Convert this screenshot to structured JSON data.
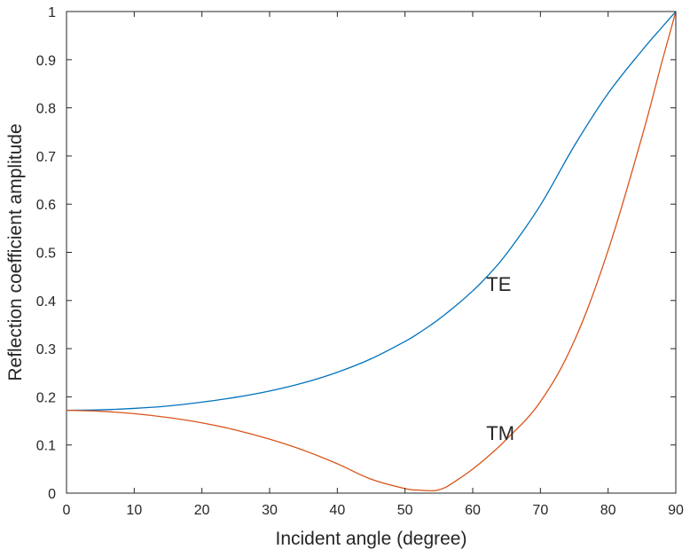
{
  "chart_data": {
    "type": "line",
    "title": "",
    "xlabel": "Incident angle (degree)",
    "ylabel": "Reflection coefficient amplitude",
    "xlim": [
      0,
      90
    ],
    "ylim": [
      0,
      1
    ],
    "x_ticks": [
      0,
      10,
      20,
      30,
      40,
      50,
      60,
      70,
      80,
      90
    ],
    "y_ticks": [
      0,
      0.1,
      0.2,
      0.3,
      0.4,
      0.5,
      0.6,
      0.7,
      0.8,
      0.9,
      1
    ],
    "grid": false,
    "box": true,
    "x": [
      0,
      5,
      10,
      15,
      20,
      25,
      30,
      35,
      40,
      45,
      50,
      52,
      54,
      54.7,
      56,
      58,
      60,
      62,
      65,
      70,
      75,
      80,
      85,
      88,
      90
    ],
    "series": [
      {
        "name": "",
        "color": "#0072BD",
        "values": [
          0.172,
          0.173,
          0.176,
          0.181,
          0.189,
          0.199,
          0.212,
          0.229,
          0.251,
          0.279,
          0.315,
          0.332,
          0.351,
          0.358,
          0.372,
          0.395,
          0.42,
          0.448,
          0.497,
          0.598,
          0.721,
          0.83,
          0.919,
          0.968,
          1.0
        ]
      },
      {
        "name": "",
        "color": "#D95319",
        "values": [
          0.172,
          0.17,
          0.165,
          0.157,
          0.146,
          0.131,
          0.112,
          0.089,
          0.061,
          0.029,
          0.0095,
          0.0065,
          0.005,
          0.006,
          0.012,
          0.03,
          0.05,
          0.073,
          0.112,
          0.19,
          0.316,
          0.504,
          0.74,
          0.898,
          1.0
        ]
      }
    ],
    "annotations": [
      {
        "text": "TE",
        "x": 62,
        "y": 0.435
      },
      {
        "text": "TM",
        "x": 62,
        "y": 0.125
      }
    ]
  }
}
